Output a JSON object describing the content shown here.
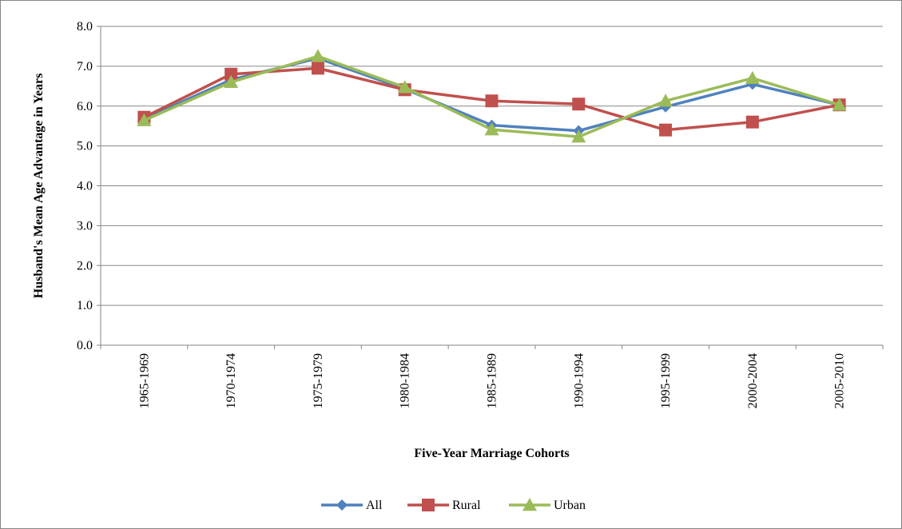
{
  "chart_data": {
    "type": "line",
    "title": "",
    "xlabel": "Five-Year Marriage Cohorts",
    "ylabel": "Husband's Mean Age Advantage in Years",
    "ylim": [
      0,
      8
    ],
    "yticks": [
      "0.0",
      "1.0",
      "2.0",
      "3.0",
      "4.0",
      "5.0",
      "6.0",
      "7.0",
      "8.0"
    ],
    "grid": true,
    "legend_position": "bottom",
    "categories": [
      "1965-1969",
      "1970-1974",
      "1975-1979",
      "1980-1984",
      "1985-1989",
      "1990-1994",
      "1995-1999",
      "2000-2004",
      "2005-2010"
    ],
    "series": [
      {
        "name": "All",
        "color": "#4F81BD",
        "marker": "diamond",
        "values": [
          5.68,
          6.66,
          7.2,
          6.43,
          5.52,
          5.38,
          5.98,
          6.55,
          6.03
        ]
      },
      {
        "name": "Rural",
        "color": "#C0504D",
        "marker": "square",
        "values": [
          5.72,
          6.8,
          6.95,
          6.41,
          6.13,
          6.05,
          5.4,
          5.6,
          6.03
        ]
      },
      {
        "name": "Urban",
        "color": "#9BBB59",
        "marker": "triangle",
        "values": [
          5.64,
          6.6,
          7.25,
          6.47,
          5.41,
          5.23,
          6.13,
          6.7,
          6.03
        ]
      }
    ]
  }
}
